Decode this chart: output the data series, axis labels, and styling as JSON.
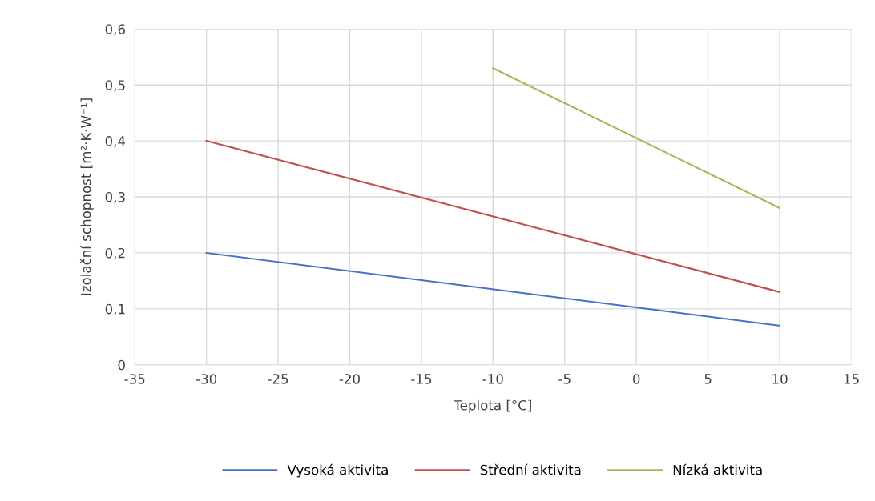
{
  "chart_data": {
    "type": "line",
    "xlabel": "Teplota [°C]",
    "ylabel": "Izolační schopnost [m²·K·W⁻¹]",
    "series": [
      {
        "name": "Vysoká aktivita",
        "color": "#4472c4",
        "x": [
          -30,
          10
        ],
        "values": [
          0.2,
          0.07
        ]
      },
      {
        "name": "Střední aktivita",
        "color": "#c0504d",
        "x": [
          -30,
          10
        ],
        "values": [
          0.4,
          0.13
        ]
      },
      {
        "name": "Nízká aktivita",
        "color": "#9bbb59",
        "x": [
          -10,
          10
        ],
        "values": [
          0.53,
          0.28
        ]
      }
    ],
    "xlim": [
      -35,
      15
    ],
    "ylim": [
      0,
      0.6
    ],
    "xticks": [
      -35,
      -30,
      -25,
      -20,
      -15,
      -10,
      -5,
      0,
      5,
      10,
      15
    ],
    "yticks": [
      {
        "value": 0,
        "label": "0"
      },
      {
        "value": 0.1,
        "label": "0,1"
      },
      {
        "value": 0.2,
        "label": "0,2"
      },
      {
        "value": 0.3,
        "label": "0,3"
      },
      {
        "value": 0.4,
        "label": "0,4"
      },
      {
        "value": 0.5,
        "label": "0,5"
      },
      {
        "value": 0.6,
        "label": "0,6"
      }
    ],
    "grid": true,
    "legend": "bottom",
    "marker": "none",
    "line_style": "solid"
  }
}
